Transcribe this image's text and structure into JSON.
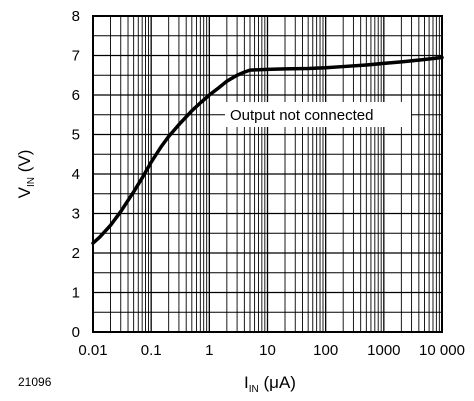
{
  "chart_data": {
    "type": "line",
    "x_scale": "log",
    "xlim": [
      0.01,
      10000
    ],
    "ylim": [
      0,
      8
    ],
    "grid": true,
    "x_ticks": [
      "0.01",
      "0.1",
      "1",
      "10",
      "100",
      "1000",
      "10 000"
    ],
    "y_ticks": [
      "0",
      "1",
      "2",
      "3",
      "4",
      "5",
      "6",
      "7",
      "8"
    ],
    "xlabel": {
      "main": "I",
      "sub": "IN",
      "unit": " (μA)"
    },
    "ylabel": {
      "main": "V",
      "sub": "IN",
      "unit": " (V)"
    },
    "annotation": "Output not connected",
    "figure_id": "21096",
    "series": [
      {
        "x": [
          0.01,
          0.013,
          0.02,
          0.03,
          0.05,
          0.07,
          0.1,
          0.15,
          0.2,
          0.3,
          0.5,
          0.7,
          1,
          1.5,
          2,
          3,
          4,
          5,
          7,
          10,
          20,
          50,
          100,
          200,
          500,
          1000,
          2000,
          5000,
          10000
        ],
        "y": [
          2.25,
          2.4,
          2.7,
          3.05,
          3.55,
          3.9,
          4.3,
          4.7,
          4.95,
          5.25,
          5.6,
          5.8,
          6.0,
          6.2,
          6.35,
          6.5,
          6.58,
          6.63,
          6.64,
          6.65,
          6.66,
          6.67,
          6.69,
          6.72,
          6.76,
          6.8,
          6.84,
          6.9,
          6.95
        ],
        "color": "#000000"
      }
    ]
  }
}
